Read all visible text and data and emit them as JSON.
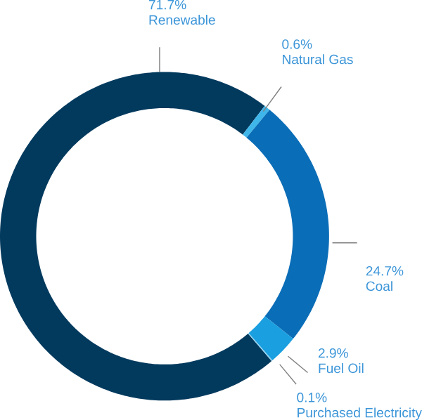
{
  "chart_data": {
    "type": "donut",
    "categories": [
      "Renewable",
      "Natural Gas",
      "Coal",
      "Fuel Oil",
      "Purchased Electricity"
    ],
    "values": [
      71.7,
      0.6,
      24.7,
      2.9,
      0.1
    ],
    "value_labels": [
      "71.7%",
      "0.6%",
      "24.7%",
      "2.9%",
      "0.1%"
    ],
    "colors": [
      "#023a5e",
      "#3fb6ea",
      "#0a6db7",
      "#1a9fe0",
      "#8ad0f2"
    ]
  }
}
